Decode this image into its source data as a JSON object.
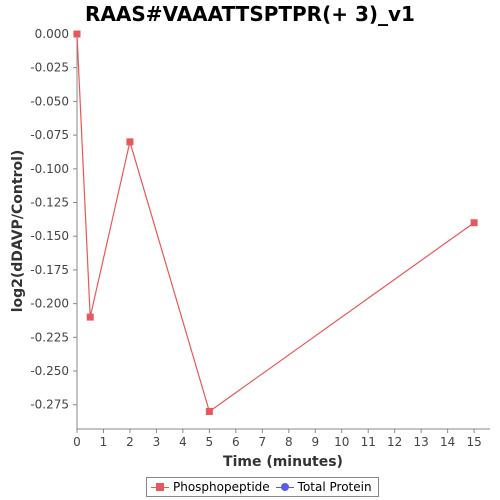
{
  "chart_data": {
    "type": "line",
    "title": "RAAS#VAAATTSPTPR(+ 3)_v1",
    "xlabel": "Time (minutes)",
    "ylabel": "log2(dDAVP/Control)",
    "xlim": [
      0,
      15.6
    ],
    "ylim": [
      -0.293,
      0.0
    ],
    "x_ticks": [
      0,
      1,
      2,
      3,
      4,
      5,
      6,
      7,
      8,
      9,
      10,
      11,
      12,
      13,
      14,
      15
    ],
    "y_ticks": [
      0.0,
      -0.025,
      -0.05,
      -0.075,
      -0.1,
      -0.125,
      -0.15,
      -0.175,
      -0.2,
      -0.225,
      -0.25,
      -0.275
    ],
    "y_tick_labels": [
      "0.000",
      "-0.025",
      "-0.050",
      "-0.075",
      "-0.100",
      "-0.125",
      "-0.150",
      "-0.175",
      "-0.200",
      "-0.225",
      "-0.250",
      "-0.275"
    ],
    "grid": false,
    "legend_position": "bottom-center",
    "series": [
      {
        "name": "Phosphopeptide",
        "color": "#e8585a",
        "marker": "square",
        "x": [
          0,
          0.5,
          2,
          5,
          15
        ],
        "y": [
          0.0,
          -0.21,
          -0.08,
          -0.28,
          -0.14
        ]
      },
      {
        "name": "Total Protein",
        "color": "#5b5bea",
        "marker": "circle",
        "x": [],
        "y": []
      }
    ]
  }
}
